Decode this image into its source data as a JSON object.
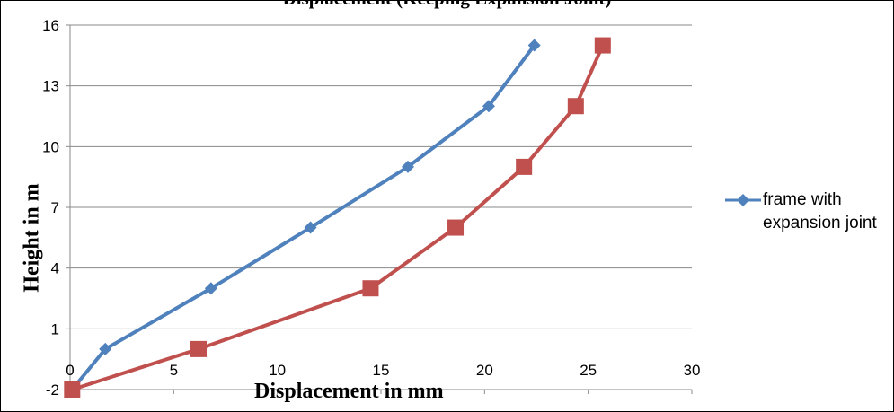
{
  "chart_data": {
    "type": "line",
    "title": "Displacement (Keeping Expansion Joint)",
    "xlabel": "Displacement in mm",
    "ylabel": "Height in m",
    "xlim": [
      0,
      30
    ],
    "ylim": [
      -2,
      16
    ],
    "xticks": [
      0,
      5,
      10,
      15,
      20,
      25,
      30
    ],
    "yticks": [
      -2,
      1,
      4,
      7,
      10,
      13,
      16
    ],
    "grid": "horizontal",
    "legend_position": "right",
    "series": [
      {
        "name": "frame with expansion joint",
        "color": "#4F81BD",
        "marker": "diamond",
        "x": [
          0.1,
          1.7,
          6.8,
          11.6,
          16.3,
          20.2,
          22.4
        ],
        "y": [
          -2,
          0,
          3,
          6,
          9,
          12,
          15
        ]
      },
      {
        "name": "",
        "color": "#C0504D",
        "marker": "square",
        "x": [
          0.1,
          6.2,
          14.5,
          18.6,
          21.9,
          24.4,
          25.7
        ],
        "y": [
          -2,
          0,
          3,
          6,
          9,
          12,
          15
        ]
      }
    ]
  }
}
